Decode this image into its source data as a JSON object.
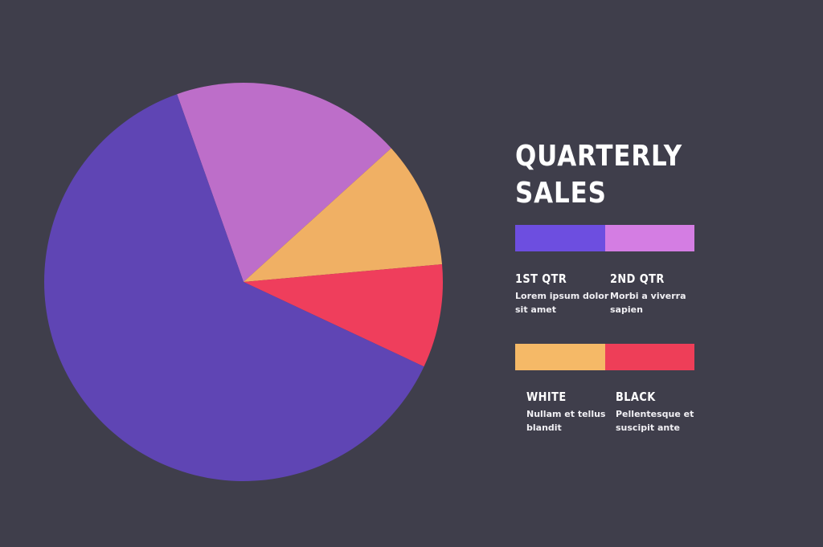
{
  "chart_data": {
    "type": "pie",
    "title": "QUARTERLY SALES",
    "slices": [
      {
        "label": "1ST QTR",
        "value": 62.6,
        "color": "#5f45b4"
      },
      {
        "label": "2ND QTR",
        "value": 18.7,
        "color": "#bd6ec9"
      },
      {
        "label": "WHITE",
        "value": 10.3,
        "color": "#f0b064"
      },
      {
        "label": "BLACK",
        "value": 8.4,
        "color": "#ef3e5c"
      }
    ],
    "slice_order_clockwise_from_top": [
      "2ND QTR",
      "WHITE",
      "BLACK",
      "1ST QTR"
    ],
    "legend": {
      "placement": "right",
      "entries": [
        {
          "label": "1ST QTR",
          "description": "Lorem ipsum dolor sit amet",
          "color": "#6d4ee0"
        },
        {
          "label": "2ND QTR",
          "description": "Morbi a viverra sapien",
          "color": "#d47de3"
        },
        {
          "label": "WHITE",
          "description": "Nullam et tellus blandit",
          "color": "#f5b967"
        },
        {
          "label": "BLACK",
          "description": "Pellentesque et suscipit ante",
          "color": "#ee3e58"
        }
      ]
    }
  },
  "title_lines": [
    "QUARTERLY",
    "SALES"
  ],
  "background_color": "#3f3e4b"
}
